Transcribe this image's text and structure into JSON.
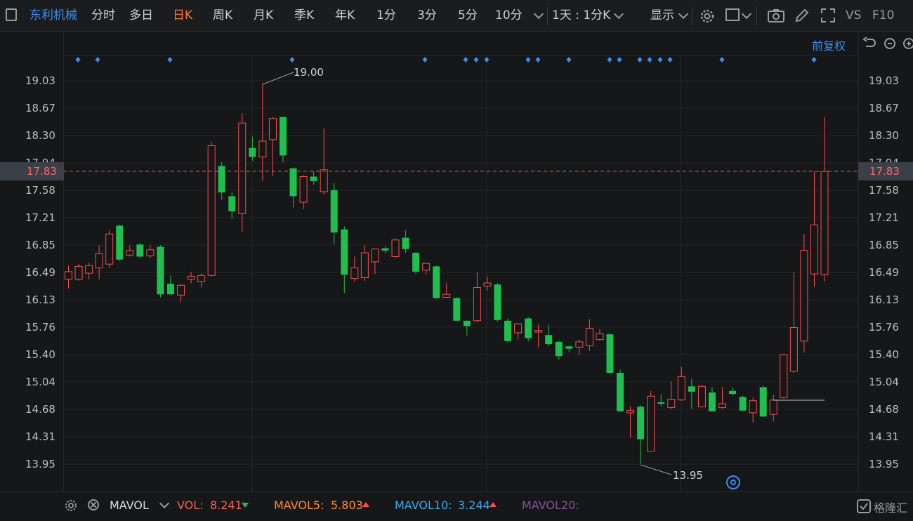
{
  "toolbar": {
    "stock_name": "东利机械",
    "tabs": [
      "分时",
      "多日",
      "日K",
      "周K",
      "月K",
      "季K",
      "年K",
      "1分",
      "3分",
      "5分",
      "10分"
    ],
    "active_tab": "日K",
    "combo": "1天 : 1分K",
    "display": "显示",
    "vs": "VS",
    "f10": "F10"
  },
  "adjust_label": "前复权",
  "current_price": "17.83",
  "y_axis_labels": [
    "19.03",
    "18.67",
    "18.30",
    "17.94",
    "17.58",
    "17.21",
    "16.85",
    "16.49",
    "16.13",
    "15.76",
    "15.40",
    "15.04",
    "14.68",
    "14.31",
    "13.95"
  ],
  "annotations": {
    "high": "19.00",
    "low": "13.95"
  },
  "colors": {
    "up": "#ff4b4b",
    "down": "#1fbf4f",
    "accent": "#ff7a2e",
    "link": "#3b8df0"
  },
  "indicator": {
    "name": "MAVOL",
    "vol_label": "VOL:",
    "vol_value": "8.241",
    "mavol5_label": "MAVOL5:",
    "mavol5_value": "5.803",
    "mavol10_label": "MAVOL10:",
    "mavol10_value": "3.244",
    "mavol20_label": "MAVOL20:"
  },
  "watermark": "格隆汇",
  "chart_data": {
    "type": "candlestick",
    "ylim": [
      13.95,
      19.03
    ],
    "candles": [
      {
        "o": 16.4,
        "c": 16.5,
        "h": 16.58,
        "l": 16.28
      },
      {
        "o": 16.4,
        "c": 16.57,
        "h": 16.6,
        "l": 16.38
      },
      {
        "o": 16.48,
        "c": 16.58,
        "h": 16.62,
        "l": 16.4
      },
      {
        "o": 16.55,
        "c": 16.74,
        "h": 16.85,
        "l": 16.4
      },
      {
        "o": 16.6,
        "c": 17.0,
        "h": 17.05,
        "l": 16.55
      },
      {
        "o": 17.11,
        "c": 16.66,
        "h": 17.12,
        "l": 16.64
      },
      {
        "o": 16.72,
        "c": 16.78,
        "h": 16.85,
        "l": 16.7
      },
      {
        "o": 16.86,
        "c": 16.7,
        "h": 16.88,
        "l": 16.68
      },
      {
        "o": 16.71,
        "c": 16.79,
        "h": 16.85,
        "l": 16.68
      },
      {
        "o": 16.83,
        "c": 16.2,
        "h": 16.85,
        "l": 16.16
      },
      {
        "o": 16.34,
        "c": 16.2,
        "h": 16.45,
        "l": 16.19
      },
      {
        "o": 16.19,
        "c": 16.32,
        "h": 16.34,
        "l": 16.1
      },
      {
        "o": 16.4,
        "c": 16.44,
        "h": 16.5,
        "l": 16.35
      },
      {
        "o": 16.37,
        "c": 16.45,
        "h": 16.48,
        "l": 16.29
      },
      {
        "o": 16.45,
        "c": 18.17,
        "h": 18.22,
        "l": 16.44
      },
      {
        "o": 17.9,
        "c": 17.55,
        "h": 17.95,
        "l": 17.45
      },
      {
        "o": 17.5,
        "c": 17.3,
        "h": 17.55,
        "l": 17.2
      },
      {
        "o": 17.27,
        "c": 18.47,
        "h": 18.6,
        "l": 17.03
      },
      {
        "o": 18.14,
        "c": 18.02,
        "h": 18.29,
        "l": 17.97
      },
      {
        "o": 18.02,
        "c": 18.23,
        "h": 19.0,
        "l": 17.7
      },
      {
        "o": 18.25,
        "c": 18.53,
        "h": 18.55,
        "l": 17.77
      },
      {
        "o": 18.55,
        "c": 18.04,
        "h": 18.55,
        "l": 17.95
      },
      {
        "o": 17.87,
        "c": 17.5,
        "h": 17.88,
        "l": 17.35
      },
      {
        "o": 17.42,
        "c": 17.76,
        "h": 17.78,
        "l": 17.33
      },
      {
        "o": 17.76,
        "c": 17.7,
        "h": 17.83,
        "l": 17.65
      },
      {
        "o": 17.56,
        "c": 17.85,
        "h": 18.4,
        "l": 17.52
      },
      {
        "o": 17.58,
        "c": 17.02,
        "h": 17.68,
        "l": 16.86
      },
      {
        "o": 17.06,
        "c": 16.46,
        "h": 17.1,
        "l": 16.22
      },
      {
        "o": 16.41,
        "c": 16.55,
        "h": 16.7,
        "l": 16.37
      },
      {
        "o": 16.42,
        "c": 16.75,
        "h": 16.85,
        "l": 16.38
      },
      {
        "o": 16.63,
        "c": 16.8,
        "h": 16.8,
        "l": 16.47
      },
      {
        "o": 16.81,
        "c": 16.78,
        "h": 16.84,
        "l": 16.74
      },
      {
        "o": 16.7,
        "c": 16.92,
        "h": 16.94,
        "l": 16.68
      },
      {
        "o": 16.95,
        "c": 16.8,
        "h": 17.05,
        "l": 16.75
      },
      {
        "o": 16.75,
        "c": 16.5,
        "h": 16.76,
        "l": 16.47
      },
      {
        "o": 16.52,
        "c": 16.61,
        "h": 16.62,
        "l": 16.46
      },
      {
        "o": 16.57,
        "c": 16.15,
        "h": 16.58,
        "l": 16.14
      },
      {
        "o": 16.16,
        "c": 16.2,
        "h": 16.35,
        "l": 16.15
      },
      {
        "o": 16.15,
        "c": 15.85,
        "h": 16.16,
        "l": 15.85
      },
      {
        "o": 15.85,
        "c": 15.78,
        "h": 15.85,
        "l": 15.65
      },
      {
        "o": 15.85,
        "c": 16.29,
        "h": 16.5,
        "l": 15.83
      },
      {
        "o": 16.31,
        "c": 16.35,
        "h": 16.43,
        "l": 16.25
      },
      {
        "o": 16.33,
        "c": 15.86,
        "h": 16.35,
        "l": 15.84
      },
      {
        "o": 15.85,
        "c": 15.58,
        "h": 15.88,
        "l": 15.56
      },
      {
        "o": 15.69,
        "c": 15.81,
        "h": 15.82,
        "l": 15.6
      },
      {
        "o": 15.88,
        "c": 15.62,
        "h": 15.9,
        "l": 15.58
      },
      {
        "o": 15.7,
        "c": 15.72,
        "h": 15.8,
        "l": 15.5
      },
      {
        "o": 15.66,
        "c": 15.54,
        "h": 15.8,
        "l": 15.51
      },
      {
        "o": 15.57,
        "c": 15.38,
        "h": 15.58,
        "l": 15.33
      },
      {
        "o": 15.51,
        "c": 15.48,
        "h": 15.52,
        "l": 15.43
      },
      {
        "o": 15.5,
        "c": 15.57,
        "h": 15.6,
        "l": 15.4
      },
      {
        "o": 15.52,
        "c": 15.75,
        "h": 15.87,
        "l": 15.45
      },
      {
        "o": 15.6,
        "c": 15.68,
        "h": 15.74,
        "l": 15.59
      },
      {
        "o": 15.67,
        "c": 15.16,
        "h": 15.68,
        "l": 15.14
      },
      {
        "o": 15.16,
        "c": 14.65,
        "h": 15.2,
        "l": 14.64
      },
      {
        "o": 14.63,
        "c": 14.66,
        "h": 14.72,
        "l": 14.3
      },
      {
        "o": 14.71,
        "c": 14.28,
        "h": 14.73,
        "l": 13.95
      },
      {
        "o": 14.12,
        "c": 14.85,
        "h": 14.92,
        "l": 14.12
      },
      {
        "o": 14.77,
        "c": 14.75,
        "h": 14.88,
        "l": 14.72
      },
      {
        "o": 14.7,
        "c": 14.81,
        "h": 15.05,
        "l": 14.68
      },
      {
        "o": 14.8,
        "c": 15.11,
        "h": 15.24,
        "l": 14.79
      },
      {
        "o": 14.98,
        "c": 14.91,
        "h": 15.08,
        "l": 14.68
      },
      {
        "o": 14.71,
        "c": 14.98,
        "h": 15.0,
        "l": 14.7
      },
      {
        "o": 14.9,
        "c": 14.65,
        "h": 14.97,
        "l": 14.65
      },
      {
        "o": 14.7,
        "c": 14.75,
        "h": 14.97,
        "l": 14.68
      },
      {
        "o": 14.92,
        "c": 14.88,
        "h": 14.97,
        "l": 14.86
      },
      {
        "o": 14.84,
        "c": 14.66,
        "h": 14.86,
        "l": 14.65
      },
      {
        "o": 14.63,
        "c": 14.79,
        "h": 14.83,
        "l": 14.5
      },
      {
        "o": 14.97,
        "c": 14.58,
        "h": 14.99,
        "l": 14.58
      },
      {
        "o": 14.61,
        "c": 14.8,
        "h": 14.87,
        "l": 14.52
      },
      {
        "o": 14.83,
        "c": 15.4,
        "h": 15.41,
        "l": 14.82
      },
      {
        "o": 15.18,
        "c": 15.76,
        "h": 16.5,
        "l": 15.16
      },
      {
        "o": 15.58,
        "c": 16.78,
        "h": 17.0,
        "l": 15.43
      },
      {
        "o": 16.47,
        "c": 17.12,
        "h": 17.83,
        "l": 16.3
      },
      {
        "o": 16.46,
        "c": 17.83,
        "h": 18.55,
        "l": 16.37
      }
    ],
    "markers_x": [
      111,
      139,
      242,
      416,
      605,
      663,
      678,
      693,
      752,
      766,
      810,
      868,
      882,
      911,
      925,
      940,
      954,
      1028,
      1159
    ]
  }
}
